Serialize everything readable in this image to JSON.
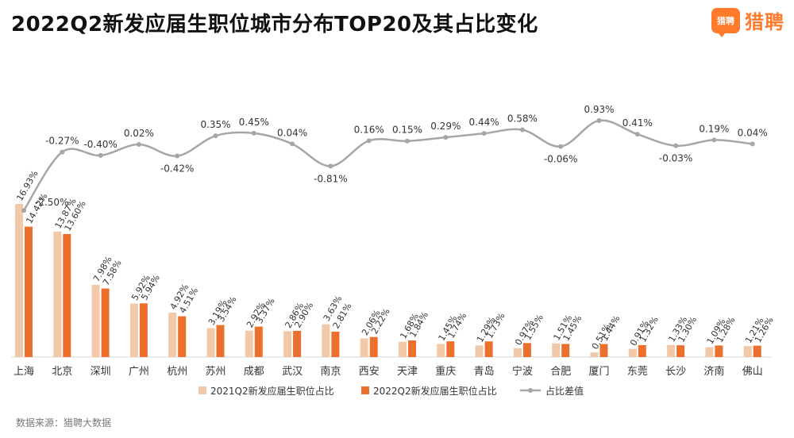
{
  "header": {
    "title": "2022Q2新发应届生职位城市分布TOP20及其占比变化",
    "brand": "猎聘",
    "brand_icon_text": "猎聘"
  },
  "source": "数据来源：猎聘大数据",
  "colors": {
    "series_2021": "#f2c9a8",
    "series_2022": "#eb6f2d",
    "diff_line": "#a6a6a6",
    "brand": "#ff7a2a"
  },
  "chart_data": {
    "type": "bar",
    "categories": [
      "上海",
      "北京",
      "深圳",
      "广州",
      "杭州",
      "苏州",
      "成都",
      "武汉",
      "南京",
      "西安",
      "天津",
      "重庆",
      "青岛",
      "宁波",
      "合肥",
      "厦门",
      "东莞",
      "长沙",
      "济南",
      "佛山"
    ],
    "series": [
      {
        "name": "2021Q2新发应届生职位占比",
        "values": [
          16.93,
          13.87,
          7.98,
          5.92,
          4.92,
          3.19,
          2.92,
          2.86,
          3.63,
          2.06,
          1.68,
          1.45,
          1.29,
          0.97,
          1.51,
          0.51,
          0.91,
          1.33,
          1.09,
          1.21
        ],
        "labels": [
          "16.93%",
          "13.87%",
          "7.98%",
          "5.92%",
          "4.92%",
          "3.19%",
          "2.92%",
          "2.86%",
          "3.63%",
          "2.06%",
          "1.68%",
          "1.45%",
          "1.29%",
          "0.97%",
          "1.51%",
          "0.51%",
          "0.91%",
          "1.33%",
          "1.09%",
          "1.21%"
        ]
      },
      {
        "name": "2022Q2新发应届生职位占比",
        "values": [
          14.42,
          13.6,
          7.58,
          5.94,
          4.51,
          3.54,
          3.37,
          2.9,
          2.81,
          2.22,
          1.84,
          1.74,
          1.73,
          1.55,
          1.45,
          1.44,
          1.32,
          1.3,
          1.28,
          1.26
        ],
        "labels": [
          "14.42%",
          "13.60%",
          "7.58%",
          "5.94%",
          "4.51%",
          "3.54%",
          "3.37%",
          "2.90%",
          "2.81%",
          "2.22%",
          "1.84%",
          "1.74%",
          "1.73%",
          "1.55%",
          "1.45%",
          "1.44%",
          "1.32%",
          "1.30%",
          "1.28%",
          "1.26%"
        ]
      },
      {
        "name": "占比差值",
        "type": "line",
        "values": [
          -2.5,
          -0.27,
          -0.4,
          0.02,
          -0.42,
          0.35,
          0.45,
          0.04,
          -0.81,
          0.16,
          0.15,
          0.29,
          0.44,
          0.58,
          -0.06,
          0.93,
          0.41,
          -0.03,
          0.19,
          0.04
        ],
        "labels": [
          "-2.50%",
          "-0.27%",
          "-0.40%",
          "0.02%",
          "-0.42%",
          "0.35%",
          "0.45%",
          "0.04%",
          "-0.81%",
          "0.16%",
          "0.15%",
          "0.29%",
          "0.44%",
          "0.58%",
          "-0.06%",
          "0.93%",
          "0.41%",
          "-0.03%",
          "0.19%",
          "0.04%"
        ]
      }
    ],
    "legend": {
      "position": "bottom"
    },
    "grid": false
  }
}
